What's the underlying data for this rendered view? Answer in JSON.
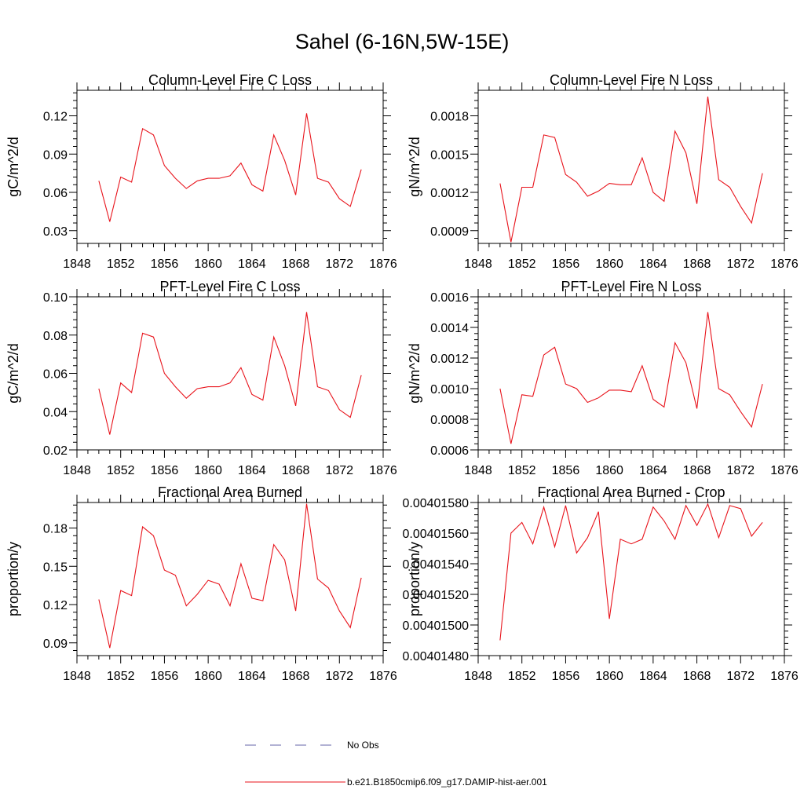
{
  "title": "Sahel (6-16N,5W-15E)",
  "series_color": "#e8131b",
  "obs_color": "#6666aa",
  "legend": {
    "obs_label": "No Obs",
    "model_label": "b.e21.B1850cmip6.f09_g17.DAMIP-hist-aer.001"
  },
  "chart_data": [
    {
      "type": "line",
      "title": "Column-Level Fire C Loss",
      "ylabel": "gC/m^2/d",
      "xlim": [
        1848,
        1876
      ],
      "ylim": [
        0.02,
        0.14
      ],
      "xticks": [
        1848,
        1852,
        1856,
        1860,
        1864,
        1868,
        1872,
        1876
      ],
      "xtick_labels": [
        "1848",
        "1852",
        "1856",
        "1860",
        "1864",
        "1868",
        "1872",
        "1876"
      ],
      "yticks": [
        0.03,
        0.06,
        0.09,
        0.12
      ],
      "ytick_labels": [
        "0.03",
        "0.06",
        "0.09",
        "0.12"
      ],
      "x": [
        1850,
        1851,
        1852,
        1853,
        1854,
        1855,
        1856,
        1857,
        1858,
        1859,
        1860,
        1861,
        1862,
        1863,
        1864,
        1865,
        1866,
        1867,
        1868,
        1869,
        1870,
        1871,
        1872,
        1873,
        1874
      ],
      "values": [
        0.069,
        0.037,
        0.072,
        0.068,
        0.11,
        0.105,
        0.081,
        0.071,
        0.063,
        0.069,
        0.071,
        0.071,
        0.073,
        0.083,
        0.066,
        0.061,
        0.105,
        0.085,
        0.058,
        0.122,
        0.071,
        0.068,
        0.055,
        0.049,
        0.078
      ]
    },
    {
      "type": "line",
      "title": "Column-Level Fire N Loss",
      "ylabel": "gN/m^2/d",
      "xlim": [
        1848,
        1876
      ],
      "ylim": [
        0.0008,
        0.002
      ],
      "xticks": [
        1848,
        1852,
        1856,
        1860,
        1864,
        1868,
        1872,
        1876
      ],
      "xtick_labels": [
        "1848",
        "1852",
        "1856",
        "1860",
        "1864",
        "1868",
        "1872",
        "1876"
      ],
      "yticks": [
        0.0009,
        0.0012,
        0.0015,
        0.0018
      ],
      "ytick_labels": [
        "0.0009",
        "0.0012",
        "0.0015",
        "0.0018"
      ],
      "x": [
        1850,
        1851,
        1852,
        1853,
        1854,
        1855,
        1856,
        1857,
        1858,
        1859,
        1860,
        1861,
        1862,
        1863,
        1864,
        1865,
        1866,
        1867,
        1868,
        1869,
        1870,
        1871,
        1872,
        1873,
        1874
      ],
      "values": [
        0.00127,
        0.00081,
        0.00124,
        0.00124,
        0.00165,
        0.00163,
        0.00134,
        0.00128,
        0.00117,
        0.00121,
        0.00127,
        0.00126,
        0.00126,
        0.00147,
        0.0012,
        0.00113,
        0.00168,
        0.00151,
        0.00111,
        0.00195,
        0.0013,
        0.00124,
        0.00109,
        0.00096,
        0.00135
      ]
    },
    {
      "type": "line",
      "title": "PFT-Level Fire C Loss",
      "ylabel": "gC/m^2/d",
      "xlim": [
        1848,
        1876
      ],
      "ylim": [
        0.02,
        0.1
      ],
      "xticks": [
        1848,
        1852,
        1856,
        1860,
        1864,
        1868,
        1872,
        1876
      ],
      "xtick_labels": [
        "1848",
        "1852",
        "1856",
        "1860",
        "1864",
        "1868",
        "1872",
        "1876"
      ],
      "yticks": [
        0.02,
        0.04,
        0.06,
        0.08,
        0.1
      ],
      "ytick_labels": [
        "0.02",
        "0.04",
        "0.06",
        "0.08",
        "0.10"
      ],
      "x": [
        1850,
        1851,
        1852,
        1853,
        1854,
        1855,
        1856,
        1857,
        1858,
        1859,
        1860,
        1861,
        1862,
        1863,
        1864,
        1865,
        1866,
        1867,
        1868,
        1869,
        1870,
        1871,
        1872,
        1873,
        1874
      ],
      "values": [
        0.052,
        0.028,
        0.055,
        0.05,
        0.081,
        0.079,
        0.06,
        0.053,
        0.047,
        0.052,
        0.053,
        0.053,
        0.055,
        0.063,
        0.049,
        0.046,
        0.079,
        0.064,
        0.043,
        0.092,
        0.053,
        0.051,
        0.041,
        0.037,
        0.059
      ]
    },
    {
      "type": "line",
      "title": "PFT-Level Fire N Loss",
      "ylabel": "gN/m^2/d",
      "xlim": [
        1848,
        1876
      ],
      "ylim": [
        0.0006,
        0.0016
      ],
      "xticks": [
        1848,
        1852,
        1856,
        1860,
        1864,
        1868,
        1872,
        1876
      ],
      "xtick_labels": [
        "1848",
        "1852",
        "1856",
        "1860",
        "1864",
        "1868",
        "1872",
        "1876"
      ],
      "yticks": [
        0.0006,
        0.0008,
        0.001,
        0.0012,
        0.0014,
        0.0016
      ],
      "ytick_labels": [
        "0.0006",
        "0.0008",
        "0.0010",
        "0.0012",
        "0.0014",
        "0.0016"
      ],
      "x": [
        1850,
        1851,
        1852,
        1853,
        1854,
        1855,
        1856,
        1857,
        1858,
        1859,
        1860,
        1861,
        1862,
        1863,
        1864,
        1865,
        1866,
        1867,
        1868,
        1869,
        1870,
        1871,
        1872,
        1873,
        1874
      ],
      "values": [
        0.001,
        0.00064,
        0.00096,
        0.00095,
        0.00122,
        0.00127,
        0.00103,
        0.001,
        0.00091,
        0.00094,
        0.00099,
        0.00099,
        0.00098,
        0.00115,
        0.00093,
        0.00088,
        0.0013,
        0.00117,
        0.00087,
        0.0015,
        0.001,
        0.00096,
        0.00085,
        0.00075,
        0.00103
      ]
    },
    {
      "type": "line",
      "title": "Fractional Area Burned",
      "ylabel": "proportion/y",
      "xlim": [
        1848,
        1876
      ],
      "ylim": [
        0.08,
        0.2
      ],
      "xticks": [
        1848,
        1852,
        1856,
        1860,
        1864,
        1868,
        1872,
        1876
      ],
      "xtick_labels": [
        "1848",
        "1852",
        "1856",
        "1860",
        "1864",
        "1868",
        "1872",
        "1876"
      ],
      "yticks": [
        0.09,
        0.12,
        0.15,
        0.18
      ],
      "ytick_labels": [
        "0.09",
        "0.12",
        "0.15",
        "0.18"
      ],
      "x": [
        1850,
        1851,
        1852,
        1853,
        1854,
        1855,
        1856,
        1857,
        1858,
        1859,
        1860,
        1861,
        1862,
        1863,
        1864,
        1865,
        1866,
        1867,
        1868,
        1869,
        1870,
        1871,
        1872,
        1873,
        1874
      ],
      "values": [
        0.124,
        0.086,
        0.131,
        0.127,
        0.181,
        0.174,
        0.147,
        0.143,
        0.119,
        0.128,
        0.139,
        0.136,
        0.119,
        0.152,
        0.125,
        0.123,
        0.167,
        0.155,
        0.115,
        0.199,
        0.14,
        0.133,
        0.115,
        0.102,
        0.141
      ]
    },
    {
      "type": "line",
      "title": "Fractional Area Burned - Crop",
      "ylabel": "proportion/y",
      "xlim": [
        1848,
        1876
      ],
      "ylim": [
        0.0040148,
        0.0040158
      ],
      "xticks": [
        1848,
        1852,
        1856,
        1860,
        1864,
        1868,
        1872,
        1876
      ],
      "xtick_labels": [
        "1848",
        "1852",
        "1856",
        "1860",
        "1864",
        "1868",
        "1872",
        "1876"
      ],
      "yticks": [
        0.0040148,
        0.004015,
        0.0040152,
        0.0040154,
        0.0040156,
        0.0040158
      ],
      "ytick_labels": [
        "0.00401480",
        "0.00401500",
        "0.00401520",
        "0.00401540",
        "0.00401560",
        "0.00401580"
      ],
      "x": [
        1850,
        1851,
        1852,
        1853,
        1854,
        1855,
        1856,
        1857,
        1858,
        1859,
        1860,
        1861,
        1862,
        1863,
        1864,
        1865,
        1866,
        1867,
        1868,
        1869,
        1870,
        1871,
        1872,
        1873,
        1874
      ],
      "values": [
        0.0040149,
        0.0040156,
        0.00401567,
        0.00401553,
        0.00401577,
        0.00401551,
        0.00401578,
        0.00401547,
        0.00401557,
        0.00401574,
        0.00401504,
        0.00401556,
        0.00401553,
        0.00401556,
        0.00401577,
        0.00401568,
        0.00401556,
        0.00401578,
        0.00401565,
        0.00401579,
        0.00401557,
        0.00401578,
        0.00401576,
        0.00401558,
        0.00401567
      ]
    }
  ]
}
